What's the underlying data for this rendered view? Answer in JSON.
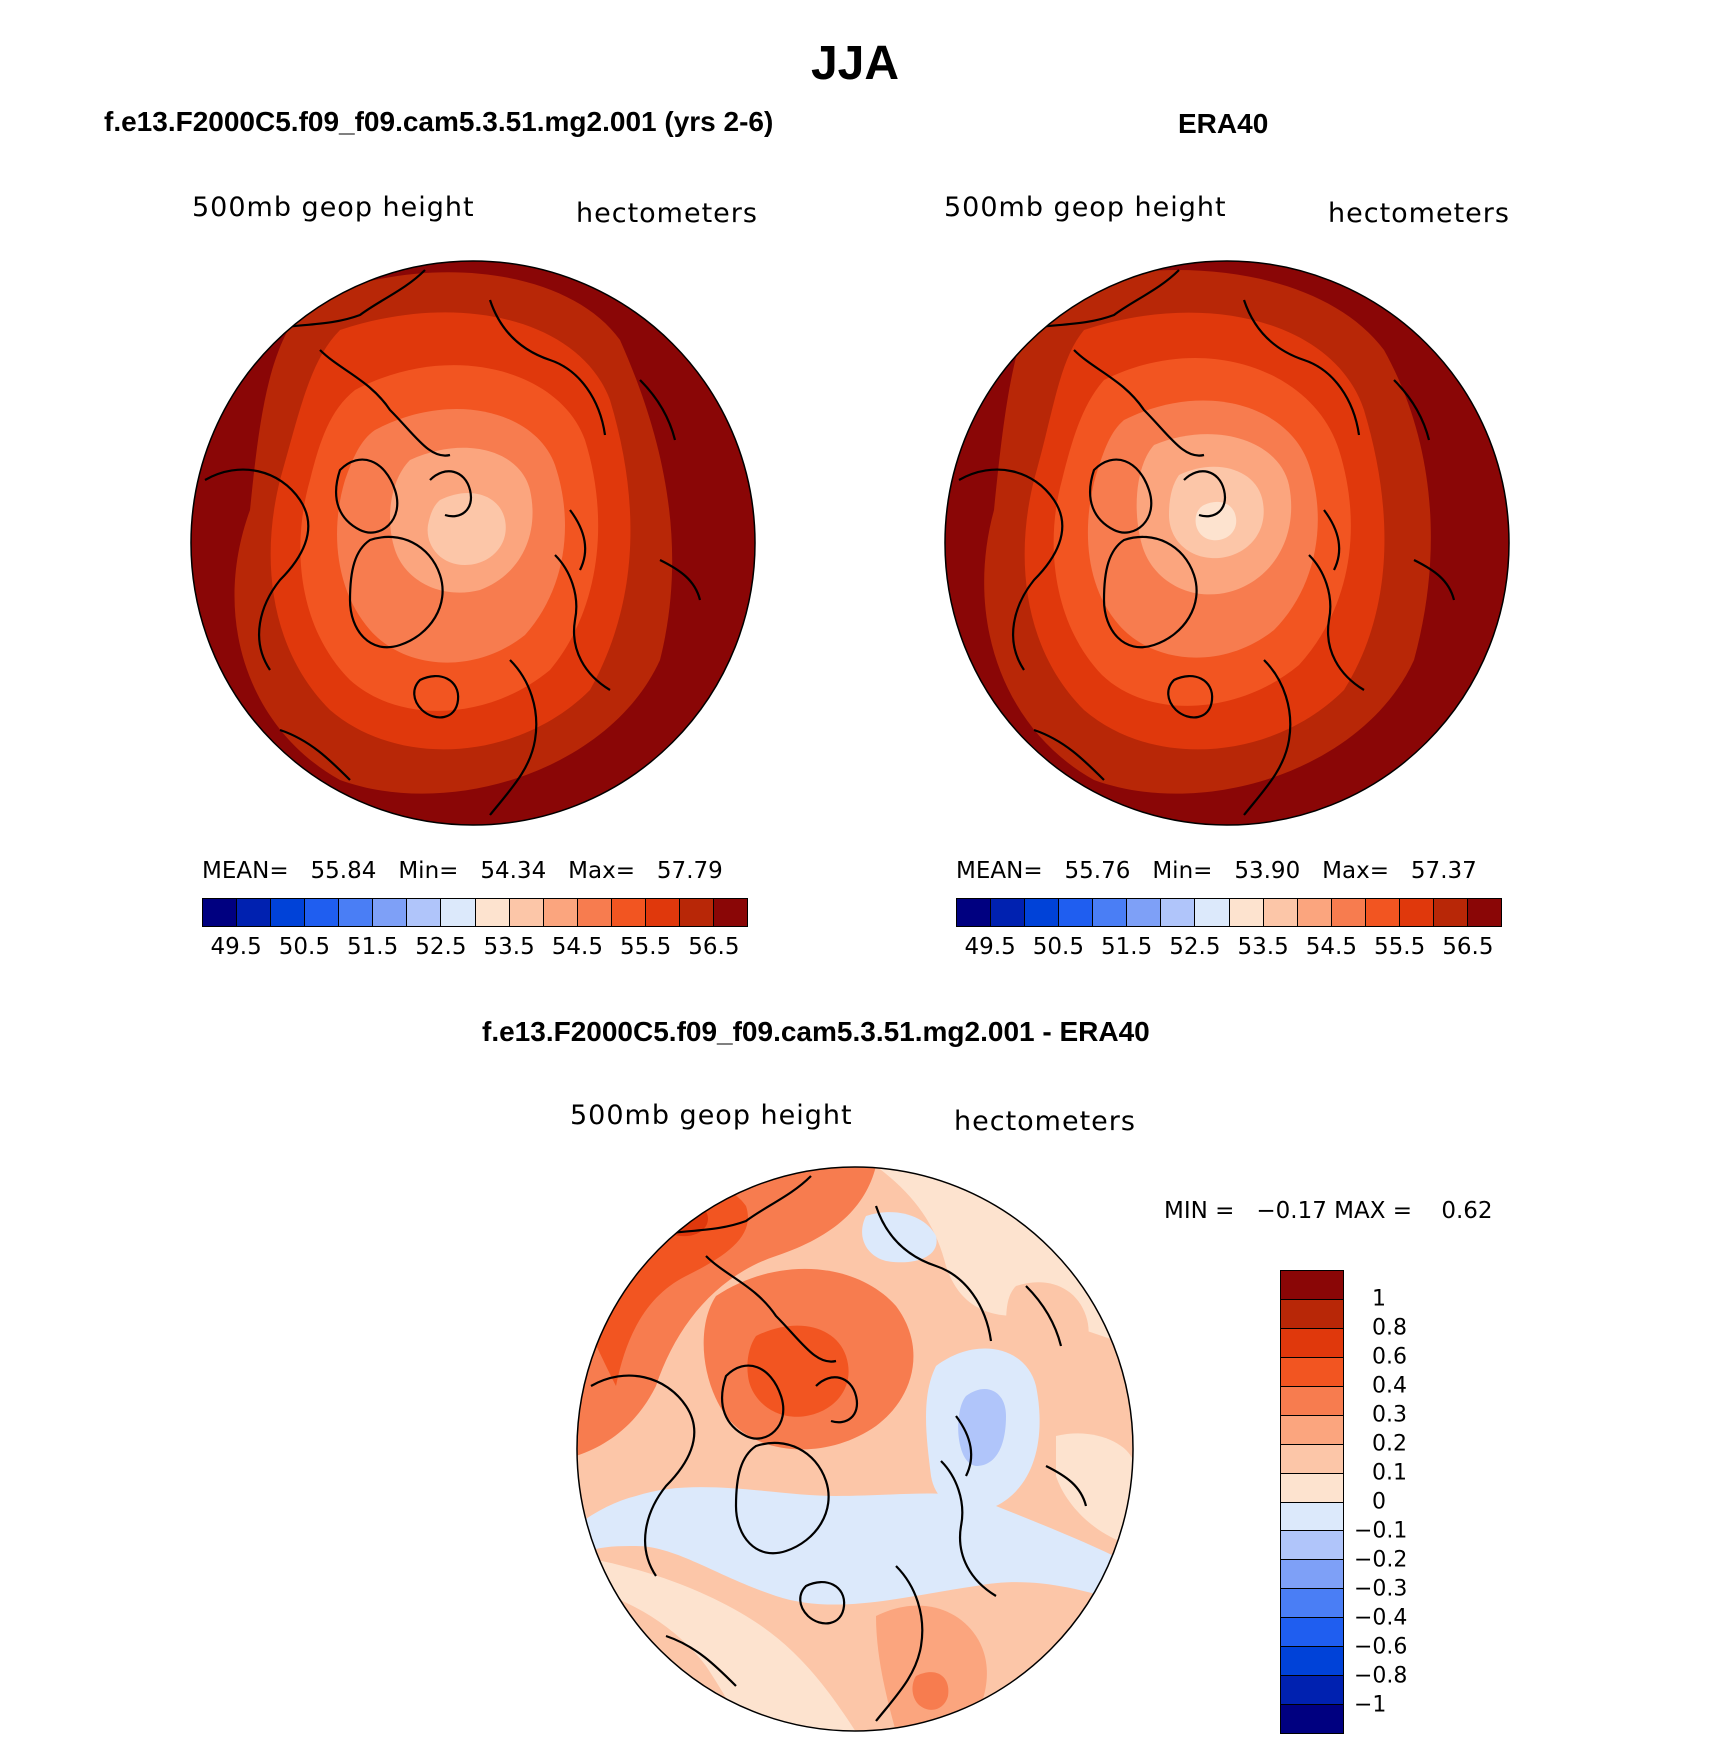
{
  "figure": {
    "title": "JJA"
  },
  "panels": [
    {
      "title": "f.e13.F2000C5.f09_f09.cam5.3.51.mg2.001 (yrs 2-6)",
      "variable": "500mb geop height",
      "units": "hectometers",
      "stats": {
        "mean_label": "MEAN=",
        "mean": "55.84",
        "min_label": "Min=",
        "min": "54.34",
        "max_label": "Max=",
        "max": "57.79"
      }
    },
    {
      "title": "ERA40",
      "variable": "500mb geop height",
      "units": "hectometers",
      "stats": {
        "mean_label": "MEAN=",
        "mean": "55.76",
        "min_label": "Min=",
        "min": "53.90",
        "max_label": "Max=",
        "max": "57.37"
      }
    },
    {
      "title": "f.e13.F2000C5.f09_f09.cam5.3.51.mg2.001 - ERA40",
      "variable": "500mb geop height",
      "units": "hectometers",
      "stats_text": {
        "min_label": "MIN =",
        "min": "−0.17",
        "max_label": "MAX =",
        "max": "0.62"
      }
    }
  ],
  "colorbars": {
    "absolute": {
      "colors": [
        "#000080",
        "#0021b0",
        "#0042d8",
        "#1f5ef0",
        "#4a7ef5",
        "#7ea0f7",
        "#b0c5fa",
        "#dce9fb",
        "#fde3cf",
        "#fcc6a8",
        "#fba57e",
        "#f77c4f",
        "#f25521",
        "#e0380c",
        "#b82707",
        "#8a0606"
      ],
      "tick_labels": [
        "49.5",
        "50.5",
        "51.5",
        "52.5",
        "53.5",
        "54.5",
        "55.5",
        "56.5"
      ]
    },
    "difference": {
      "colors": [
        "#8a0606",
        "#b82707",
        "#e0380c",
        "#f25521",
        "#f77c4f",
        "#fba57e",
        "#fcc6a8",
        "#fde3cf",
        "#dce9fb",
        "#b0c5fa",
        "#7ea0f7",
        "#4a7ef5",
        "#1f5ef0",
        "#0042d8",
        "#0021b0",
        "#000080"
      ],
      "tick_labels": [
        "1",
        "0.8",
        "0.6",
        "0.4",
        "0.3",
        "0.2",
        "0.1",
        "0",
        "−0.1",
        "−0.2",
        "−0.3",
        "−0.4",
        "−0.6",
        "−0.8",
        "−1"
      ]
    }
  }
}
